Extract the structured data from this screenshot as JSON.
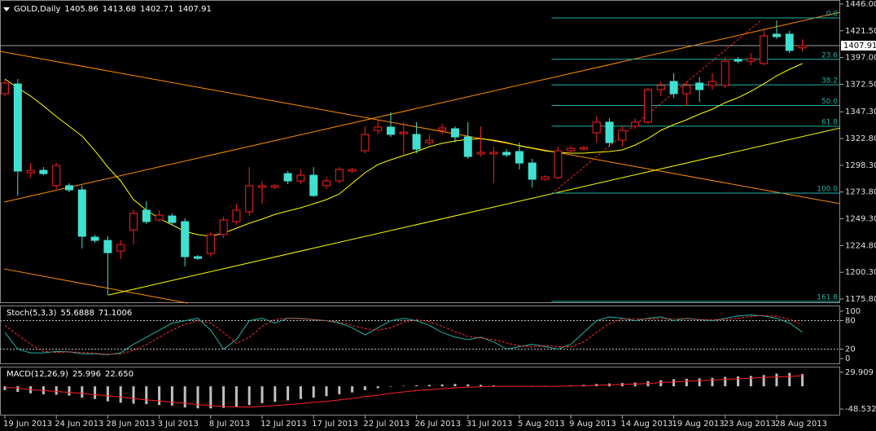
{
  "chart_data": [
    {
      "type": "candlestick",
      "title": "GOLD,Daily",
      "header_values": [
        1405.86,
        1413.68,
        1402.71,
        1407.91
      ],
      "open": [
        1363.9,
        1372.8,
        1291.5,
        1293.7,
        1279.6,
        1279.6,
        1275.8,
        1232.5,
        1229.5,
        1219.8,
        1239.2,
        1257.2,
        1248.2,
        1251.9,
        1246.7,
        1214.6,
        1217.6,
        1234.8,
        1246.7,
        1255.7,
        1278.1,
        1278.1,
        1290.7,
        1284.0,
        1289.2,
        1279.6,
        1284.0,
        1293.0,
        1311.6,
        1330.3,
        1333.3,
        1327.3,
        1326.6,
        1319.1,
        1330.3,
        1331.8,
        1324.3,
        1308.7,
        1308.7,
        1310.2,
        1310.9,
        1300.4,
        1285.5,
        1287.0,
        1311.6,
        1313.1,
        1328.1,
        1337.8,
        1321.3,
        1334.0,
        1337.8,
        1367.6,
        1375.1,
        1363.9,
        1373.6,
        1371.4,
        1371.4,
        1395.2,
        1393.7,
        1391.5,
        1418.4,
        1418.4,
        1405.86
      ],
      "high": [
        1376.6,
        1377.3,
        1300.4,
        1296.7,
        1300.4,
        1281.8,
        1279.6,
        1234.8,
        1233.3,
        1229.5,
        1257.9,
        1265.4,
        1257.2,
        1254.2,
        1249.7,
        1216.1,
        1237.0,
        1251.2,
        1263.1,
        1296.7,
        1284.0,
        1281.0,
        1293.0,
        1294.5,
        1296.7,
        1287.0,
        1296.7,
        1296.0,
        1334.0,
        1339.3,
        1346.7,
        1337.8,
        1337.8,
        1326.6,
        1336.3,
        1334.0,
        1337.8,
        1334.0,
        1315.4,
        1313.1,
        1319.1,
        1304.2,
        1289.2,
        1315.4,
        1315.4,
        1316.1,
        1343.7,
        1341.5,
        1334.0,
        1341.5,
        1369.1,
        1375.1,
        1382.6,
        1375.1,
        1378.8,
        1382.6,
        1397.5,
        1397.5,
        1401.2,
        1423.6,
        1431.1,
        1421.4,
        1413.68
      ],
      "low": [
        1361.7,
        1270.6,
        1287.0,
        1289.3,
        1276.6,
        1273.6,
        1222.1,
        1227.3,
        1179.5,
        1212.4,
        1225.8,
        1244.5,
        1246.7,
        1243.7,
        1205.7,
        1211.6,
        1214.6,
        1231.8,
        1243.7,
        1251.9,
        1263.1,
        1276.6,
        1281.0,
        1281.0,
        1269.1,
        1276.6,
        1281.8,
        1291.5,
        1309.4,
        1326.6,
        1324.3,
        1307.9,
        1309.4,
        1316.9,
        1326.6,
        1319.1,
        1304.2,
        1306.4,
        1281.8,
        1305.7,
        1294.5,
        1278.1,
        1284.0,
        1285.5,
        1309.4,
        1311.6,
        1319.1,
        1315.4,
        1315.4,
        1331.8,
        1336.3,
        1361.7,
        1360.2,
        1352.7,
        1356.4,
        1367.6,
        1369.1,
        1391.5,
        1390.0,
        1390.0,
        1413.9,
        1401.2,
        1402.71
      ],
      "close": [
        1373.6,
        1293.0,
        1293.7,
        1290.7,
        1298.2,
        1275.8,
        1233.3,
        1229.5,
        1218.3,
        1225.8,
        1254.2,
        1246.7,
        1252.7,
        1246.0,
        1214.6,
        1213.1,
        1234.8,
        1248.2,
        1257.2,
        1279.6,
        1279.6,
        1279.6,
        1284.0,
        1289.2,
        1270.6,
        1284.0,
        1294.5,
        1294.5,
        1326.6,
        1333.3,
        1326.6,
        1328.8,
        1313.1,
        1321.3,
        1332.5,
        1324.3,
        1306.4,
        1310.2,
        1310.2,
        1307.9,
        1300.4,
        1285.5,
        1287.7,
        1311.6,
        1313.9,
        1314.6,
        1337.8,
        1319.1,
        1330.3,
        1337.8,
        1367.6,
        1371.4,
        1363.9,
        1371.4,
        1367.6,
        1375.1,
        1393.7,
        1393.7,
        1396.0,
        1416.9,
        1416.1,
        1403.5,
        1407.91
      ],
      "bull_color": "#ff2020",
      "bear_color": "#40e0d0",
      "xlim": [
        -0.38,
        64.94
      ],
      "ylim": [
        1172.1,
        1449.7
      ],
      "yticks": [
        {
          "value": 1446,
          "label": "1446.00"
        },
        {
          "value": 1421.5,
          "label": "1421.50"
        },
        {
          "value": 1397,
          "label": "1397.00"
        },
        {
          "value": 1372.5,
          "label": "1372.50"
        },
        {
          "value": 1347.3,
          "label": "1347.30"
        },
        {
          "value": 1322.8,
          "label": "1322.80"
        },
        {
          "value": 1298.3,
          "label": "1298.30"
        },
        {
          "value": 1273.8,
          "label": "1273.80"
        },
        {
          "value": 1249.3,
          "label": "1249.30"
        },
        {
          "value": 1224.8,
          "label": "1224.80"
        },
        {
          "value": 1200.3,
          "label": "1200.30"
        },
        {
          "value": 1175.8,
          "label": "1175.80"
        }
      ],
      "last_price": 1407.91,
      "ma": {
        "color": "#ffff00",
        "values": [
          1377.3,
          1369.1,
          1361.7,
          1352.7,
          1343.0,
          1334.0,
          1325.1,
          1311.6,
          1296.7,
          1284.0,
          1266.9,
          1257.2,
          1249.7,
          1243.7,
          1237.8,
          1234.8,
          1233.3,
          1236.3,
          1240.7,
          1245.2,
          1249.0,
          1253.4,
          1256.4,
          1259.4,
          1263.1,
          1266.9,
          1272.1,
          1281.8,
          1291.5,
          1299.0,
          1303.4,
          1307.2,
          1310.9,
          1315.4,
          1318.4,
          1320.6,
          1322.1,
          1322.8,
          1321.3,
          1319.1,
          1316.1,
          1313.9,
          1311.6,
          1310.2,
          1309.4,
          1309.4,
          1310.2,
          1310.9,
          1312.4,
          1316.9,
          1322.8,
          1330.3,
          1335.5,
          1340.0,
          1345.2,
          1349.7,
          1355.7,
          1360.2,
          1366.1,
          1372.9,
          1380.3,
          1386.3,
          1391.5
        ]
      },
      "trendlines": [
        {
          "color": "#ff8c00",
          "from": [
            -0.38,
            1402.7
          ],
          "to": [
            64.94,
            1263.1
          ]
        },
        {
          "color": "#ff8c00",
          "from": [
            -0.06,
            1264.6
          ],
          "to": [
            64.94,
            1438.5
          ]
        },
        {
          "color": "#ff8c00",
          "from": [
            -0.06,
            1203.4
          ],
          "to": [
            14.2,
            1172.1
          ]
        },
        {
          "color": "#ffff00",
          "from": [
            8.04,
            1179.5
          ],
          "to": [
            64.94,
            1332.5
          ]
        },
        {
          "color": "#ff2020",
          "dash": true,
          "from": [
            42.5,
            1272.1
          ],
          "to": [
            58.8,
            1431.1
          ]
        }
      ],
      "current_line_color": "#a0a0a0",
      "fib": {
        "start": 42.5,
        "color": "#20b2aa",
        "levels": [
          {
            "label": "0.0",
            "price": 1433.3
          },
          {
            "label": "23.6",
            "price": 1395.4
          },
          {
            "label": "38.2",
            "price": 1372.0
          },
          {
            "label": "50.0",
            "price": 1353.1
          },
          {
            "label": "61.8",
            "price": 1334.1
          },
          {
            "label": "100.0",
            "price": 1272.8
          },
          {
            "label": "161.8",
            "price": 1173.6
          }
        ]
      }
    },
    {
      "type": "line",
      "title": "Stoch(5,3,3)",
      "header_values": [
        55.6888,
        71.1006
      ],
      "series": [
        {
          "color": "#20b2aa",
          "values": [
            55,
            20,
            12,
            12,
            15,
            14,
            10,
            10,
            8,
            12,
            30,
            45,
            60,
            75,
            80,
            85,
            60,
            20,
            40,
            80,
            85,
            75,
            85,
            85,
            82,
            80,
            75,
            65,
            50,
            65,
            80,
            85,
            80,
            70,
            55,
            45,
            40,
            45,
            35,
            20,
            25,
            30,
            25,
            20,
            30,
            55,
            80,
            88,
            85,
            80,
            85,
            88,
            80,
            85,
            82,
            80,
            85,
            90,
            92,
            90,
            85,
            75,
            55.6888
          ]
        },
        {
          "color": "#ff3030",
          "dash": true,
          "values": [
            70,
            50,
            30,
            15,
            13,
            14,
            13,
            11,
            9,
            10,
            17,
            29,
            45,
            60,
            72,
            80,
            75,
            55,
            32,
            45,
            68,
            83,
            85,
            84,
            82,
            80,
            77,
            70,
            63,
            60,
            65,
            77,
            82,
            78,
            68,
            57,
            47,
            43,
            40,
            33,
            27,
            25,
            27,
            25,
            25,
            35,
            55,
            74,
            84,
            84,
            83,
            84,
            84,
            84,
            82,
            82,
            82,
            85,
            89,
            91,
            89,
            83,
            71.1006
          ]
        }
      ],
      "ylim": [
        -11.9,
        110.2
      ],
      "yticks": [
        100,
        80,
        20,
        0
      ],
      "levels": [
        80,
        20
      ],
      "level_color": "#c0c0c0"
    },
    {
      "type": "macd",
      "title": "MACD(12,26,9)",
      "header_values": [
        25.996,
        {
          "value": 22.65,
          "label": "22.650"
        }
      ],
      "histogram": {
        "color": "#c0c0c0",
        "values": [
          -8,
          -12,
          -15,
          -17,
          -18,
          -20,
          -24,
          -27,
          -32,
          -35,
          -37,
          -38,
          -40,
          -41,
          -45,
          -47,
          -47,
          -46,
          -44,
          -40,
          -36,
          -33,
          -30,
          -27,
          -24,
          -21,
          -17,
          -13,
          -8,
          -4,
          -1,
          1,
          2,
          3,
          4,
          5,
          4,
          3,
          2,
          1,
          0.5,
          -1,
          -1,
          1,
          2,
          3,
          5,
          6,
          7,
          8,
          11,
          13,
          15,
          16,
          17,
          18,
          20,
          21,
          22,
          24,
          27,
          28.5,
          25.996
        ]
      },
      "signal": {
        "color": "#ff2020",
        "values": [
          -2,
          -4,
          -7,
          -9,
          -11,
          -13,
          -15,
          -18,
          -20,
          -23,
          -26,
          -29,
          -31,
          -34,
          -36,
          -39,
          -41,
          -43,
          -44,
          -44,
          -43,
          -41,
          -39,
          -37,
          -34,
          -32,
          -29,
          -26,
          -22,
          -19,
          -15,
          -12,
          -9,
          -7,
          -5,
          -3,
          -2,
          -1,
          0,
          0,
          0,
          0,
          0,
          0,
          0.5,
          1,
          2,
          3,
          4,
          5,
          6,
          8,
          9,
          11,
          12,
          13,
          15,
          16,
          17,
          19,
          20,
          21,
          22.65
        ]
      },
      "ylim": [
        -62.2,
        40.1
      ],
      "yticks": [
        29.909,
        -48.532
      ],
      "xticks": [
        {
          "value": 0,
          "label": "19 Jun 2013"
        },
        {
          "value": 4,
          "label": "24 Jun 2013"
        },
        {
          "value": 8,
          "label": "28 Jun 2013"
        },
        {
          "value": 12,
          "label": "3 Jul 2013"
        },
        {
          "value": 16,
          "label": "8 Jul 2013"
        },
        {
          "value": 20,
          "label": "12 Jul 2013"
        },
        {
          "value": 24,
          "label": "17 Jul 2013"
        },
        {
          "value": 28,
          "label": "22 Jul 2013"
        },
        {
          "value": 32,
          "label": "26 Jul 2013"
        },
        {
          "value": 36,
          "label": "31 Jul 2013"
        },
        {
          "value": 40,
          "label": "5 Aug 2013"
        },
        {
          "value": 44,
          "label": "9 Aug 2013"
        },
        {
          "value": 48,
          "label": "14 Aug 2013"
        },
        {
          "value": 52,
          "label": "19 Aug 2013"
        },
        {
          "value": 56,
          "label": "23 Aug 2013"
        },
        {
          "value": 60,
          "label": "28 Aug 2013"
        }
      ]
    }
  ]
}
